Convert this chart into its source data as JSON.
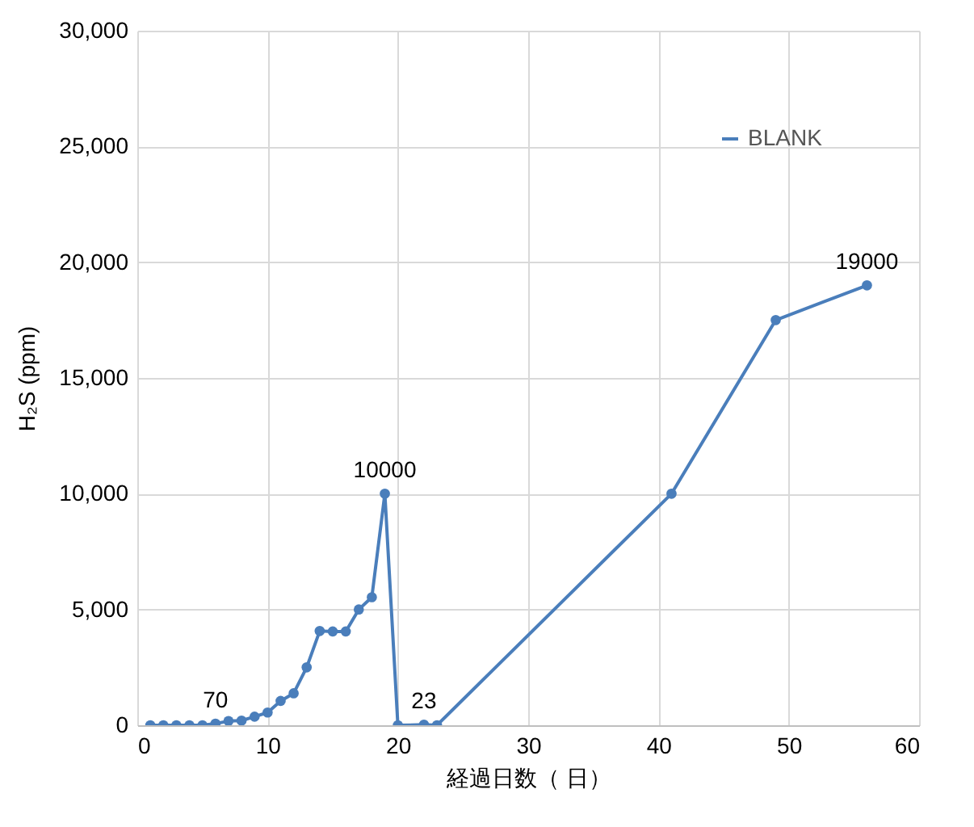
{
  "chart_data": {
    "type": "line",
    "xlabel": "経過日数（ 日）",
    "ylabel": "H₂S (ppm)",
    "x": [
      1,
      2,
      3,
      4,
      5,
      6,
      7,
      8,
      9,
      10,
      11,
      12,
      13,
      14,
      15,
      16,
      17,
      18,
      19,
      20,
      22,
      23,
      41,
      49,
      56
    ],
    "series": [
      {
        "name": "BLANK",
        "color": "#4a7ebb",
        "values": [
          0,
          0,
          0,
          0,
          0,
          70,
          180,
          200,
          370,
          550,
          1050,
          1380,
          2500,
          4070,
          4050,
          4050,
          5000,
          5530,
          10000,
          0,
          23,
          0,
          10000,
          17500,
          19000
        ],
        "value_labels": [
          null,
          null,
          null,
          null,
          null,
          "70",
          null,
          null,
          null,
          null,
          null,
          null,
          null,
          null,
          null,
          null,
          null,
          null,
          "10000",
          null,
          "23",
          null,
          null,
          null,
          "19000"
        ]
      }
    ],
    "xlim": [
      0,
      60
    ],
    "xticks": [
      0,
      10,
      20,
      30,
      40,
      50,
      60
    ],
    "ylim": [
      0,
      30000
    ],
    "yticks": [
      0,
      {
        "value": 5000,
        "label": "5,000"
      },
      {
        "value": 10000,
        "label": "10,000"
      },
      {
        "value": 15000,
        "label": "15,000"
      },
      {
        "value": 20000,
        "label": "20,000"
      },
      {
        "value": 25000,
        "label": "25,000"
      },
      {
        "value": 30000,
        "label": "30,000"
      }
    ],
    "grid": true,
    "legend": "top right",
    "marker": "circle",
    "line_style": "solid"
  }
}
